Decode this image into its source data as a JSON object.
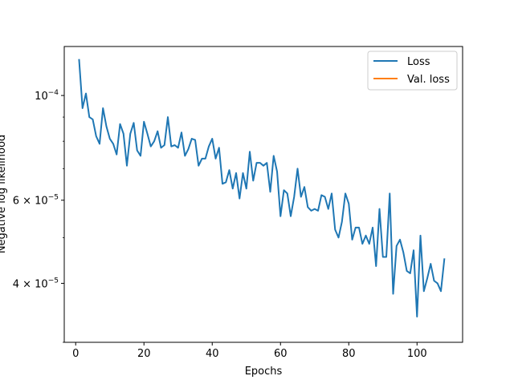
{
  "chart_data": {
    "type": "line",
    "title": "",
    "xlabel": "Epochs",
    "ylabel": "Negative log likelihood",
    "xlim": [
      -3.35,
      113.35
    ],
    "ylim": [
      3e-05,
      0.000127
    ],
    "yscale": "log",
    "grid": false,
    "legend_position": "top-right",
    "x_ticks": [
      {
        "value": 0,
        "label": "0"
      },
      {
        "value": 20,
        "label": "20"
      },
      {
        "value": 40,
        "label": "40"
      },
      {
        "value": 60,
        "label": "60"
      },
      {
        "value": 80,
        "label": "80"
      },
      {
        "value": 100,
        "label": "100"
      }
    ],
    "y_ticks": [
      {
        "value": 4e-05,
        "base": "4 × 10",
        "exp": "−5"
      },
      {
        "value": 6e-05,
        "base": "6 × 10",
        "exp": "−5"
      },
      {
        "value": 0.0001,
        "base": "10",
        "exp": "−4"
      }
    ],
    "y_minor_ticks": [
      3e-05,
      5e-05,
      7e-05,
      8e-05,
      9e-05
    ],
    "series": [
      {
        "name": "Loss",
        "color": "#1f77b4",
        "x_start": 1,
        "values": [
          0.000119,
          9.4e-05,
          0.000101,
          9e-05,
          8.9e-05,
          8.2e-05,
          7.9e-05,
          9.4e-05,
          8.6e-05,
          8.1e-05,
          7.9e-05,
          7.5e-05,
          8.7e-05,
          8.3e-05,
          7.1e-05,
          8.3e-05,
          8.75e-05,
          7.65e-05,
          7.45e-05,
          8.8e-05,
          8.3e-05,
          7.8e-05,
          8e-05,
          8.4e-05,
          7.75e-05,
          7.85e-05,
          9e-05,
          7.8e-05,
          7.85e-05,
          7.75e-05,
          8.35e-05,
          7.45e-05,
          7.7e-05,
          8.1e-05,
          8.05e-05,
          7.1e-05,
          7.35e-05,
          7.35e-05,
          7.8e-05,
          8.1e-05,
          7.35e-05,
          7.75e-05,
          6.5e-05,
          6.55e-05,
          6.95e-05,
          6.35e-05,
          6.85e-05,
          6.05e-05,
          6.85e-05,
          6.35e-05,
          7.6e-05,
          6.6e-05,
          7.2e-05,
          7.2e-05,
          7.1e-05,
          7.2e-05,
          6.25e-05,
          7.45e-05,
          6.9e-05,
          5.55e-05,
          6.3e-05,
          6.2e-05,
          5.55e-05,
          6.1e-05,
          7e-05,
          6.1e-05,
          6.4e-05,
          5.8e-05,
          5.7e-05,
          5.75e-05,
          5.7e-05,
          6.15e-05,
          6.1e-05,
          5.75e-05,
          6.2e-05,
          5.2e-05,
          5e-05,
          5.4e-05,
          6.2e-05,
          5.9e-05,
          4.95e-05,
          5.25e-05,
          5.25e-05,
          4.85e-05,
          5.05e-05,
          4.85e-05,
          5.25e-05,
          4.35e-05,
          5.75e-05,
          4.55e-05,
          4.55e-05,
          6.2e-05,
          3.8e-05,
          4.8e-05,
          4.95e-05,
          4.65e-05,
          4.25e-05,
          4.2e-05,
          4.7e-05,
          3.4e-05,
          5.05e-05,
          3.85e-05,
          4.1e-05,
          4.4e-05,
          4.05e-05,
          4e-05,
          3.85e-05,
          4.5e-05
        ]
      },
      {
        "name": "Val. loss",
        "color": "#ff7f0e",
        "x_start": 1,
        "values": []
      }
    ]
  }
}
